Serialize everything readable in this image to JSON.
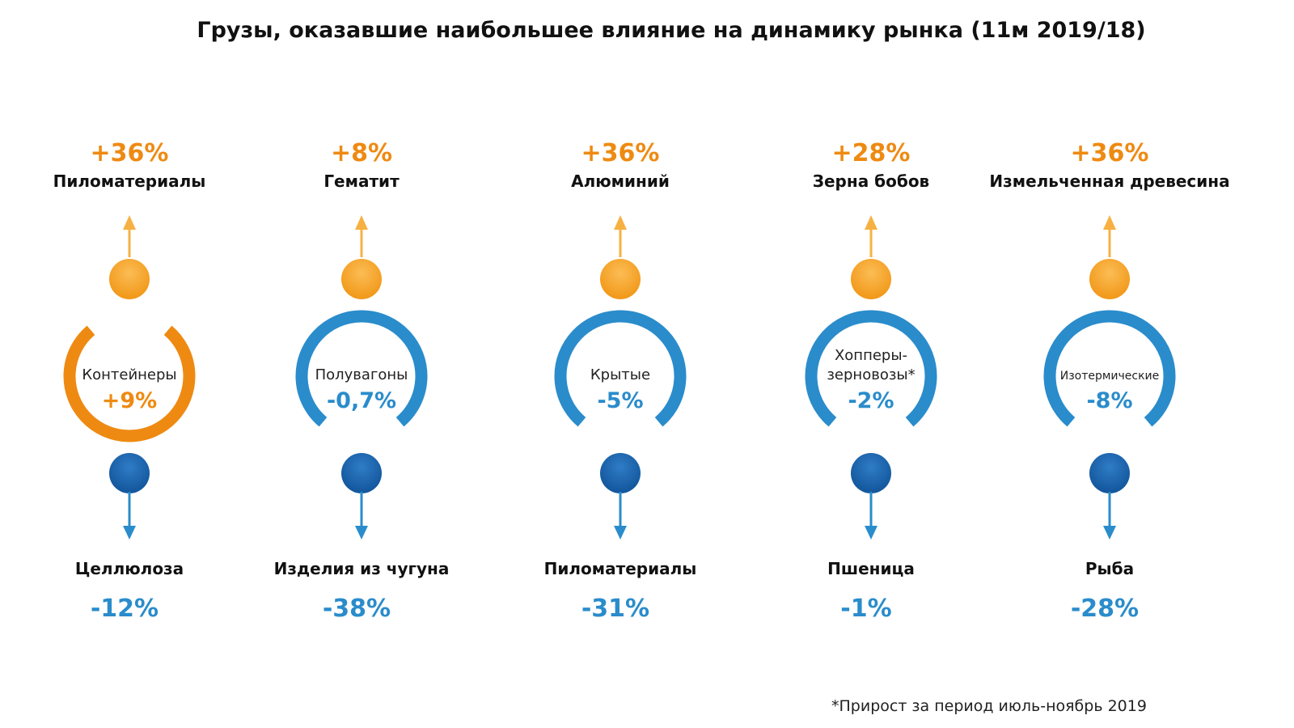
{
  "title": "Грузы, оказавшие наибольшее влияние на динамику рынка (11м 2019/18)",
  "colors": {
    "orange": "#ee8a12",
    "orange_light": "#f7b143",
    "blue": "#2a8ccb",
    "blue_dark": "#1b67b0",
    "text": "#111111"
  },
  "columns": [
    {
      "top_change": "+36%",
      "top_cargo": "Пиломатериалы",
      "wagon_type": "Контейнеры",
      "wagon_change": "+9%",
      "ring_color": "orange",
      "bottom_cargo": "Целлюлоза",
      "bottom_change": "-12%"
    },
    {
      "top_change": "+8%",
      "top_cargo": "Гематит",
      "wagon_type": "Полувагоны",
      "wagon_change": "-0,7%",
      "ring_color": "blue",
      "bottom_cargo": "Изделия из чугуна",
      "bottom_change": "-38%"
    },
    {
      "top_change": "+36%",
      "top_cargo": "Алюминий",
      "wagon_type": "Крытые",
      "wagon_change": "-5%",
      "ring_color": "blue",
      "bottom_cargo": "Пиломатериалы",
      "bottom_change": "-31%"
    },
    {
      "top_change": "+28%",
      "top_cargo": "Зерна бобов",
      "wagon_type": "Хопперы-\nзерновозы*",
      "wagon_change": "-2%",
      "ring_color": "blue",
      "bottom_cargo": "Пшеница",
      "bottom_change": "-1%"
    },
    {
      "top_change": "+36%",
      "top_cargo": "Измельченная древесина",
      "wagon_type": "Изотермические",
      "wagon_change": "-8%",
      "ring_color": "blue",
      "bottom_cargo": "Рыба",
      "bottom_change": "-28%"
    }
  ],
  "footnote": "*Прирост за период июль-ноябрь 2019"
}
